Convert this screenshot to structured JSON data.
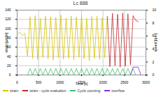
{
  "chart_data": {
    "type": "line",
    "title": "Lc 888",
    "x_label": "Time [s]",
    "y_label": "strain [µm/m]",
    "y2_label": "speed [rpm]",
    "x": [
      0,
      60,
      120,
      180,
      240,
      300,
      360,
      420,
      480,
      540,
      600,
      660,
      720,
      780,
      840,
      900,
      960,
      1020,
      1080,
      1140,
      1200,
      1260,
      1320,
      1380,
      1440,
      1500,
      1560,
      1620,
      1680,
      1740,
      1800,
      1860,
      1920,
      1980,
      2040,
      2100,
      2160,
      2220,
      2280,
      2340,
      2400,
      2460,
      2520,
      2580,
      2640,
      2700,
      2760,
      2820,
      2880,
      2940,
      3000
    ],
    "xlim": [
      0,
      3000
    ],
    "xticks": [
      0,
      500,
      1000,
      1500,
      2000,
      2500,
      3000
    ],
    "ylim": [
      0,
      140
    ],
    "yticks": [
      0,
      20,
      40,
      60,
      80,
      100,
      120,
      140
    ],
    "y2lim": [
      0,
      10
    ],
    "y2ticks": [
      0,
      2,
      4,
      6,
      8,
      10
    ],
    "grid": true,
    "series": [
      {
        "name": "strain",
        "color": "#d8c200",
        "values": [
          88,
          92,
          85,
          90,
          40,
          125,
          36,
          128,
          33,
          122,
          38,
          127,
          35,
          126,
          32,
          124,
          37,
          129,
          34,
          123,
          36,
          127,
          33,
          125,
          38,
          128,
          35,
          122,
          31,
          126,
          36,
          127,
          34,
          124,
          37,
          126,
          null,
          null,
          null,
          null,
          null,
          null,
          null,
          null,
          null,
          null,
          null,
          null,
          null,
          null,
          null
        ]
      },
      {
        "name": "strain - cycle evaluation",
        "color": "#c0282d",
        "values": [
          null,
          null,
          null,
          null,
          null,
          null,
          null,
          null,
          null,
          null,
          null,
          null,
          null,
          null,
          null,
          null,
          null,
          null,
          null,
          null,
          null,
          null,
          null,
          null,
          null,
          null,
          null,
          null,
          null,
          null,
          null,
          null,
          null,
          null,
          null,
          126,
          18,
          133,
          20,
          131,
          17,
          134,
          19,
          132,
          22,
          128,
          118,
          115,
          null,
          null,
          null
        ]
      },
      {
        "name": "Cycle counting",
        "color": "#3cc06a",
        "axis": "y2",
        "values": [
          0,
          0,
          0,
          0,
          0,
          1,
          0,
          1,
          0,
          1,
          0,
          1,
          0,
          1,
          0,
          1,
          0,
          1,
          0,
          1,
          0,
          1,
          0,
          1,
          0,
          1,
          0,
          1,
          0,
          1,
          0,
          1,
          0,
          1,
          0,
          1,
          0,
          1,
          0,
          1,
          0,
          1,
          0,
          1,
          0,
          1,
          0,
          0,
          0,
          0,
          0
        ]
      },
      {
        "name": "overflow",
        "color": "#8a2be2",
        "axis": "y2",
        "values": [
          null,
          null,
          null,
          null,
          null,
          null,
          null,
          null,
          null,
          null,
          null,
          null,
          null,
          null,
          null,
          null,
          null,
          null,
          null,
          null,
          null,
          null,
          null,
          null,
          null,
          null,
          null,
          null,
          null,
          null,
          null,
          null,
          null,
          null,
          null,
          null,
          null,
          null,
          null,
          null,
          null,
          null,
          null,
          null,
          0,
          1.2,
          1.2,
          1.2,
          0,
          0,
          0
        ]
      }
    ]
  }
}
